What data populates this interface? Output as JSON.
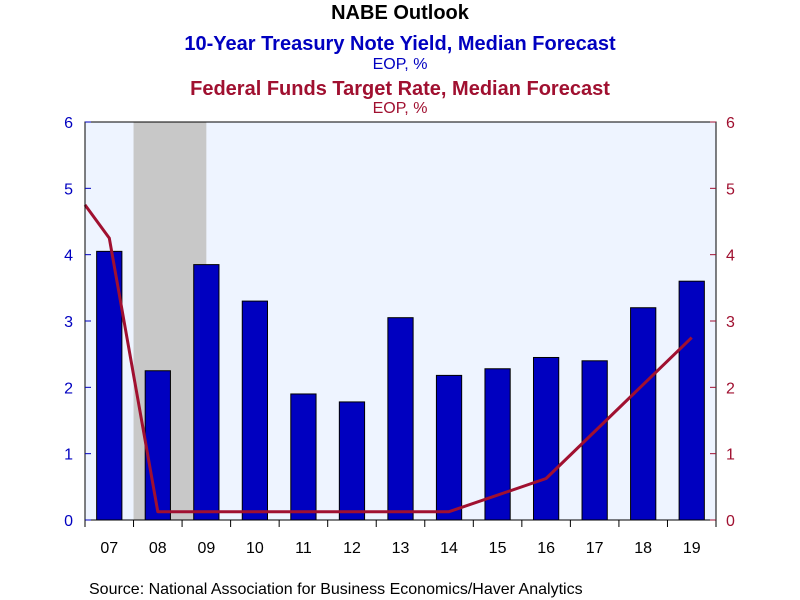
{
  "chart_data": {
    "type": "bar",
    "title": "NABE Outlook",
    "subtitle1": "10-Year Treasury Note Yield, Median Forecast",
    "subtitle1_unit": "EOP, %",
    "subtitle2": "Federal Funds Target Rate, Median Forecast",
    "subtitle2_unit": "EOP, %",
    "source": "Source:  National Association for Business Economics/Haver Analytics",
    "categories": [
      "07",
      "08",
      "09",
      "10",
      "11",
      "12",
      "13",
      "14",
      "15",
      "16",
      "17",
      "18",
      "19"
    ],
    "series": [
      {
        "type": "bar",
        "axis": "left",
        "color": "#0000c0",
        "values": [
          4.05,
          2.25,
          3.85,
          3.3,
          1.9,
          1.78,
          3.05,
          2.18,
          2.28,
          2.45,
          2.4,
          3.2,
          3.6
        ]
      },
      {
        "type": "line",
        "axis": "right",
        "color": "#a01030",
        "points": [
          {
            "x": 0,
            "y": 4.75
          },
          {
            "x": 0.5,
            "y": 4.25
          },
          {
            "x": 1.5,
            "y": 0.125
          },
          {
            "x": 7.5,
            "y": 0.125
          },
          {
            "x": 9.5,
            "y": 0.625
          },
          {
            "x": 12.5,
            "y": 2.75
          }
        ]
      }
    ],
    "recession": {
      "from": 1,
      "to": 2.5,
      "color": "#c8c8c8"
    },
    "ylim_left": [
      0,
      6
    ],
    "ylim_right": [
      0,
      6
    ],
    "yticks": [
      0,
      1,
      2,
      3,
      4,
      5,
      6
    ],
    "left_axis_color": "#0000c0",
    "right_axis_color": "#a01030",
    "title_color": "#000000",
    "subtitle1_color": "#0000c0",
    "subtitle2_color": "#a01030",
    "plot_background": "#eef4ff",
    "grid": false
  }
}
